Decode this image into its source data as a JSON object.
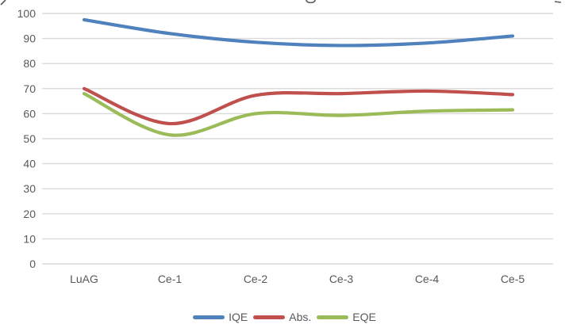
{
  "chart_data": {
    "type": "line",
    "title": "",
    "xlabel": "",
    "ylabel": "",
    "categories": [
      "LuAG",
      "Ce-1",
      "Ce-2",
      "Ce-3",
      "Ce-4",
      "Ce-5"
    ],
    "series": [
      {
        "name": "IQE",
        "color": "#4F81BD",
        "values": [
          97.5,
          92.0,
          88.5,
          87.2,
          88.2,
          91.0
        ]
      },
      {
        "name": "Abs.",
        "color": "#C0504D",
        "values": [
          70.0,
          56.0,
          67.3,
          68.0,
          69.0,
          67.6
        ]
      },
      {
        "name": "EQE",
        "color": "#9BBB59",
        "values": [
          68.0,
          51.5,
          60.0,
          59.3,
          61.0,
          61.5
        ]
      }
    ],
    "ylim": [
      0,
      100
    ],
    "y_tick_labels": [
      "0",
      "10",
      "20",
      "30",
      "40",
      "50",
      "60",
      "70",
      "80",
      "90",
      "100"
    ],
    "grid": true,
    "smoothed": true,
    "legend_position": "bottom"
  },
  "colors": {
    "gridline": "#D9D9D9",
    "axis_text": "#595959",
    "background": "#FFFFFF",
    "title_fragment": "#595959"
  }
}
